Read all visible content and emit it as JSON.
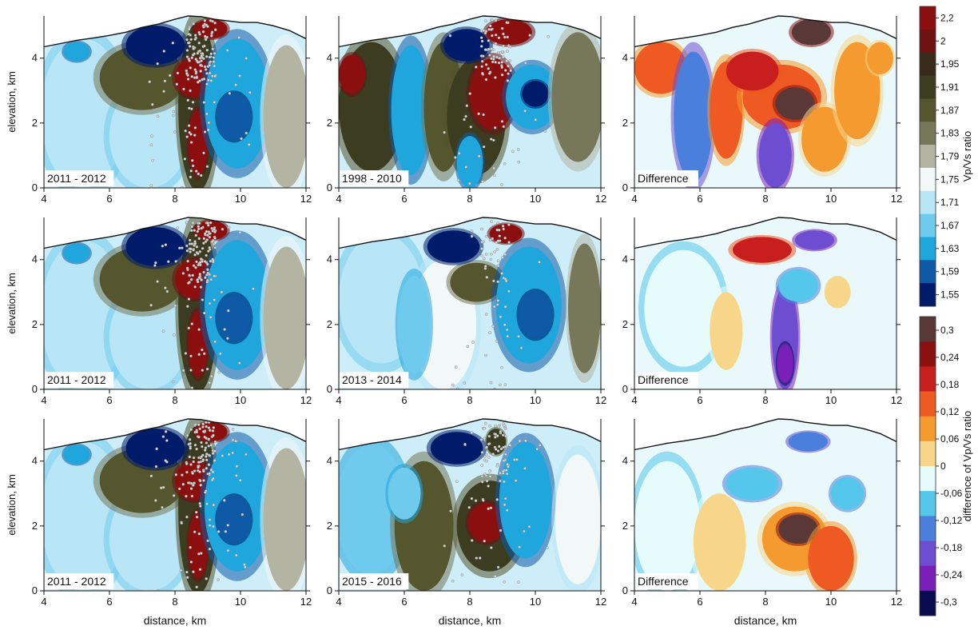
{
  "figure": {
    "x_axis_label": "distance, km",
    "y_axis_label": "elevation, km",
    "x_ticks": [
      "4",
      "6",
      "8",
      "10",
      "12"
    ],
    "y_ticks": [
      "0",
      "2",
      "4"
    ],
    "x_range_km": [
      4,
      12
    ],
    "y_range_km": [
      0,
      5.3
    ],
    "rows": [
      {
        "panels": [
          {
            "label": "2011 - 2012",
            "kind": "ratio",
            "seismicity": "dense",
            "anomaly": "left"
          },
          {
            "label": "1998 - 2010",
            "kind": "ratio",
            "seismicity": "medium",
            "anomaly": "center"
          },
          {
            "label": "Difference",
            "kind": "difference",
            "anomaly": "strong"
          }
        ]
      },
      {
        "panels": [
          {
            "label": "2011 - 2012",
            "kind": "ratio",
            "seismicity": "dense",
            "anomaly": "left"
          },
          {
            "label": "2013 - 2014",
            "kind": "ratio",
            "seismicity": "sparse",
            "anomaly": "weak"
          },
          {
            "label": "Difference",
            "kind": "difference",
            "anomaly": "weak"
          }
        ]
      },
      {
        "panels": [
          {
            "label": "2011 - 2012",
            "kind": "ratio",
            "seismicity": "dense",
            "anomaly": "left"
          },
          {
            "label": "2015 - 2016",
            "kind": "ratio",
            "seismicity": "medium",
            "anomaly": "lower"
          },
          {
            "label": "Difference",
            "kind": "difference",
            "anomaly": "lower"
          }
        ]
      }
    ],
    "colorbars": [
      {
        "title": "Vp/Vs ratio",
        "ticks": [
          "2,2",
          "2",
          "1,95",
          "1,91",
          "1,87",
          "1,83",
          "1,79",
          "1,75",
          "1,71",
          "1,67",
          "1,63",
          "1,59",
          "1,55"
        ],
        "colors": [
          "#8b0f0f",
          "#6e1212",
          "#3a2a1a",
          "#3c3c20",
          "#55552e",
          "#77775a",
          "#b4b4a2",
          "#f2f7f7",
          "#b9e6f6",
          "#6fcbee",
          "#1fa6dd",
          "#0e5aa6",
          "#001b6a"
        ]
      },
      {
        "title": "difference of Vp/Vs ratio",
        "ticks": [
          "0,3",
          "0,24",
          "0,18",
          "0,12",
          "0,06",
          "0",
          "-0,06",
          "-0,12",
          "-0,18",
          "-0,24",
          "-0,3"
        ],
        "colors": [
          "#5a3838",
          "#8b1010",
          "#c81e1e",
          "#ee5a22",
          "#f49a2e",
          "#f7d68a",
          "#e6fbfb",
          "#54c7ea",
          "#4a7fdc",
          "#6e4ed0",
          "#7a1fb8",
          "#0a0a50"
        ]
      }
    ]
  }
}
